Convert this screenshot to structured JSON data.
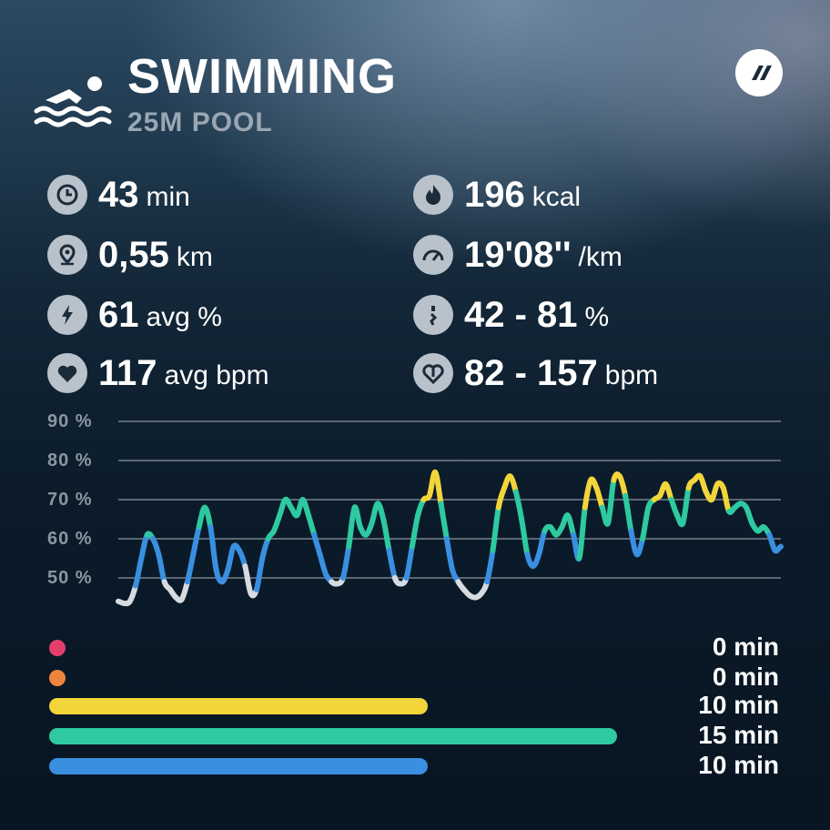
{
  "header": {
    "title": "SWIMMING",
    "subtitle": "25M POOL",
    "icon": "swimmer-icon",
    "brand_icon": "brand-logo-icon"
  },
  "stats": {
    "duration": {
      "value": "43",
      "unit": "min",
      "icon": "clock-icon"
    },
    "distance": {
      "value": "0,55",
      "unit": "km",
      "icon": "location-pin-icon"
    },
    "intensity": {
      "value": "61",
      "unit": "avg %",
      "icon": "lightning-icon"
    },
    "heart_rate": {
      "value": "117",
      "unit": "avg bpm",
      "icon": "heart-icon"
    },
    "calories": {
      "value": "196",
      "unit": "kcal",
      "icon": "flame-icon"
    },
    "pace": {
      "value": "19'08''",
      "unit": "/km",
      "icon": "speedometer-icon"
    },
    "intensity_range": {
      "value": "42 - 81",
      "unit": "%",
      "icon": "intensity-range-icon"
    },
    "heart_rate_range": {
      "value": "82 - 157",
      "unit": "bpm",
      "icon": "heart-range-icon"
    }
  },
  "chart_data": {
    "type": "line",
    "ytick_labels": [
      "90 %",
      "80 %",
      "70 %",
      "60 %",
      "50 %"
    ],
    "yticks": [
      90,
      80,
      70,
      60,
      50
    ],
    "ylim": [
      41,
      91
    ],
    "grid": true,
    "zone_colors": {
      "white": "#d7dbe0",
      "blue": "#3a8fe0",
      "green": "#2ec9a0",
      "yellow": "#f2d53a"
    },
    "series": [
      {
        "values": [
          44,
          43.5,
          44,
          48,
          55,
          61,
          60,
          56,
          49,
          47,
          45,
          44.5,
          49,
          56,
          63,
          68,
          63,
          52,
          49,
          52,
          58,
          57,
          53,
          46,
          47,
          55,
          60,
          62,
          66,
          70,
          68,
          66,
          70,
          66,
          61,
          56,
          51,
          49,
          48.5,
          50,
          58,
          68,
          63,
          61,
          64,
          69,
          65,
          57,
          50,
          48.5,
          50,
          58,
          66,
          70,
          71,
          77,
          69,
          60,
          52,
          49,
          47,
          45.5,
          45,
          46,
          49,
          57,
          68,
          73,
          76,
          72,
          65,
          56,
          53,
          56,
          62,
          63,
          61,
          63,
          66,
          61,
          55,
          68,
          75,
          73,
          68,
          64,
          75,
          76,
          71,
          62,
          56,
          60,
          68,
          70,
          71,
          74,
          70,
          66,
          64,
          73,
          75,
          76,
          72,
          70,
          74,
          73,
          67,
          68,
          69,
          68,
          64,
          62,
          63,
          61,
          57,
          58
        ],
        "color_by_zone": true
      }
    ]
  },
  "zones": [
    {
      "color": "#e2406b",
      "fraction": 0,
      "label": "0 min"
    },
    {
      "color": "#ee843e",
      "fraction": 0,
      "label": "0 min"
    },
    {
      "color": "#f2d53a",
      "fraction": 0.667,
      "label": "10 min"
    },
    {
      "color": "#2ec9a0",
      "fraction": 1.0,
      "label": "15 min"
    },
    {
      "color": "#3a8fe0",
      "fraction": 0.667,
      "label": "10 min"
    }
  ]
}
